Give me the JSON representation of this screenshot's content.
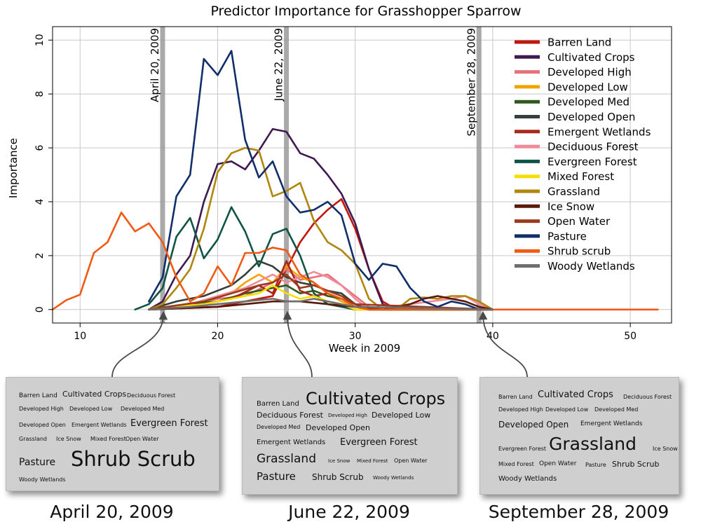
{
  "chart_data": {
    "type": "line",
    "title": "Predictor Importance for Grasshopper Sparrow",
    "xlabel": "Week in 2009",
    "ylabel": "Importance",
    "xlim": [
      8,
      53
    ],
    "ylim": [
      -0.5,
      10.5
    ],
    "xticks": [
      10,
      20,
      30,
      40,
      50
    ],
    "yticks": [
      0,
      2,
      4,
      6,
      8,
      10
    ],
    "grid": true,
    "legend_position": "top-right",
    "markers": [
      {
        "x": 16,
        "label": "April 20, 2009"
      },
      {
        "x": 25,
        "label": "June 22, 2009"
      },
      {
        "x": 39,
        "label": "September 28, 2009"
      }
    ],
    "series": [
      {
        "name": "Barren Land",
        "color": "#c0160c",
        "x": [
          15,
          20,
          24,
          25,
          26,
          27,
          28,
          29,
          30,
          31,
          32,
          33,
          35,
          40
        ],
        "values": [
          0,
          0.1,
          0.5,
          1.5,
          2.5,
          3.2,
          3.7,
          4.1,
          3.0,
          1.5,
          0.3,
          0,
          0,
          0
        ]
      },
      {
        "name": "Cultivated Crops",
        "color": "#3f1a52",
        "x": [
          15,
          16,
          17,
          18,
          19,
          20,
          21,
          22,
          23,
          24,
          25,
          26,
          27,
          28,
          29,
          30,
          31,
          32,
          33,
          40
        ],
        "values": [
          0,
          0.3,
          1.3,
          2.0,
          4.0,
          5.4,
          5.5,
          5.2,
          5.9,
          6.7,
          6.6,
          5.8,
          5.6,
          5.0,
          4.3,
          3.2,
          1.5,
          0.2,
          0,
          0
        ]
      },
      {
        "name": "Developed High",
        "color": "#e8707a",
        "x": [
          15,
          18,
          20,
          22,
          24,
          25,
          26,
          27,
          28,
          29,
          30,
          31,
          32,
          40
        ],
        "values": [
          0,
          0.2,
          0.4,
          0.5,
          1.0,
          1.5,
          1.1,
          1.2,
          1.3,
          0.9,
          0.5,
          0.1,
          0,
          0
        ]
      },
      {
        "name": "Developed Low",
        "color": "#f5a300",
        "x": [
          15,
          19,
          21,
          22,
          23,
          24,
          25,
          26,
          27,
          28,
          29,
          30,
          31,
          40
        ],
        "values": [
          0,
          0.3,
          0.6,
          1.0,
          1.3,
          1.0,
          1.6,
          1.2,
          1.0,
          0.6,
          0.3,
          0.1,
          0,
          0
        ]
      },
      {
        "name": "Developed Med",
        "color": "#2f5a1c",
        "x": [
          15,
          18,
          20,
          22,
          24,
          25,
          26,
          27,
          28,
          29,
          30,
          31,
          40
        ],
        "values": [
          0,
          0.2,
          0.3,
          0.6,
          0.8,
          0.9,
          0.6,
          0.7,
          0.5,
          0.4,
          0.2,
          0,
          0
        ]
      },
      {
        "name": "Developed Open",
        "color": "#34403b",
        "x": [
          15,
          17,
          19,
          21,
          22,
          23,
          24,
          25,
          26,
          27,
          28,
          29,
          30,
          31,
          40
        ],
        "values": [
          0,
          0.3,
          0.5,
          0.9,
          1.3,
          1.8,
          1.6,
          1.2,
          1.0,
          0.9,
          0.7,
          0.6,
          0.2,
          0,
          0
        ]
      },
      {
        "name": "Emergent Wetlands",
        "color": "#a8281a",
        "x": [
          15,
          19,
          21,
          23,
          24,
          25,
          26,
          27,
          28,
          29,
          30,
          31,
          40
        ],
        "values": [
          0,
          0.2,
          0.4,
          0.9,
          0.6,
          1.8,
          0.7,
          0.5,
          0.6,
          0.4,
          0.2,
          0,
          0
        ]
      },
      {
        "name": "Deciduous Forest",
        "color": "#f08a98",
        "x": [
          15,
          18,
          20,
          22,
          24,
          25,
          26,
          27,
          28,
          29,
          30,
          31,
          37,
          38,
          39,
          40
        ],
        "values": [
          0,
          0.2,
          0.5,
          0.8,
          1.3,
          1.0,
          1.2,
          1.4,
          1.2,
          0.9,
          0.4,
          0,
          0.4,
          0.5,
          0.2,
          0
        ]
      },
      {
        "name": "Evergreen Forest",
        "color": "#0f5546",
        "x": [
          14,
          15,
          16,
          17,
          18,
          19,
          20,
          21,
          22,
          23,
          24,
          25,
          26,
          27,
          28,
          29,
          30,
          31,
          40
        ],
        "values": [
          0,
          0.2,
          0.8,
          2.7,
          3.4,
          1.9,
          2.6,
          3.8,
          2.9,
          1.6,
          2.8,
          3.0,
          2.0,
          0.6,
          0.2,
          0.1,
          0,
          0,
          0
        ]
      },
      {
        "name": "Mixed Forest",
        "color": "#f6df00",
        "x": [
          15,
          19,
          21,
          23,
          24,
          25,
          26,
          27,
          28,
          29,
          30,
          40
        ],
        "values": [
          0,
          0.2,
          0.4,
          0.6,
          0.9,
          0.6,
          0.4,
          0.5,
          0.3,
          0.2,
          0,
          0
        ]
      },
      {
        "name": "Grassland",
        "color": "#b0860c",
        "x": [
          15,
          16,
          17,
          18,
          19,
          20,
          21,
          22,
          23,
          24,
          25,
          26,
          27,
          28,
          29,
          30,
          31,
          32,
          33,
          34,
          35,
          36,
          37,
          38,
          39,
          40
        ],
        "values": [
          0,
          0.2,
          0.8,
          1.5,
          3.0,
          5.1,
          5.8,
          6.0,
          5.9,
          4.2,
          4.4,
          4.7,
          3.3,
          2.5,
          2.2,
          1.7,
          0.4,
          0,
          0,
          0.4,
          0.45,
          0.4,
          0.5,
          0.5,
          0.3,
          0
        ]
      },
      {
        "name": "Ice Snow",
        "color": "#5a1808",
        "x": [
          15,
          20,
          22,
          24,
          26,
          28,
          30,
          32,
          34,
          35,
          36,
          37,
          38,
          39,
          40
        ],
        "values": [
          0,
          0.1,
          0.2,
          0.3,
          0.3,
          0.2,
          0.1,
          0,
          0.2,
          0.4,
          0.5,
          0.4,
          0.3,
          0.1,
          0
        ]
      },
      {
        "name": "Open Water",
        "color": "#9c3a20",
        "x": [
          15,
          19,
          21,
          23,
          24,
          25,
          26,
          27,
          28,
          29,
          30,
          40
        ],
        "values": [
          0,
          0.3,
          0.6,
          0.9,
          1.0,
          1.3,
          0.8,
          0.9,
          0.7,
          0.5,
          0.2,
          0
        ]
      },
      {
        "name": "Pasture",
        "color": "#0f2e6a",
        "x": [
          15,
          16,
          17,
          18,
          19,
          20,
          21,
          22,
          23,
          24,
          25,
          26,
          27,
          28,
          29,
          30,
          31,
          32,
          33,
          34,
          35,
          36,
          37,
          38,
          39,
          40
        ],
        "values": [
          0.3,
          1.2,
          4.2,
          5.0,
          9.3,
          8.7,
          9.6,
          6.3,
          4.9,
          5.5,
          4.2,
          3.6,
          3.7,
          4.0,
          3.5,
          1.7,
          1.1,
          1.7,
          1.6,
          0.8,
          0.3,
          0.1,
          0.3,
          0.2,
          0,
          0
        ]
      },
      {
        "name": "Shrub scrub",
        "color": "#f05a14",
        "x": [
          8,
          9,
          10,
          11,
          12,
          13,
          14,
          15,
          16,
          17,
          18,
          19,
          20,
          21,
          22,
          23,
          24,
          25,
          26,
          27,
          28,
          29,
          30,
          31,
          40,
          52
        ],
        "values": [
          0,
          0.35,
          0.55,
          2.1,
          2.5,
          3.6,
          2.9,
          3.2,
          2.5,
          1.2,
          0.3,
          0.6,
          1.6,
          0.9,
          2.1,
          2.1,
          2.3,
          2.2,
          1.3,
          1.0,
          0.6,
          0.4,
          0.1,
          0,
          0,
          0
        ]
      },
      {
        "name": "Woody Wetlands",
        "color": "#6e6e6e",
        "x": [
          15,
          18,
          20,
          22,
          24,
          25,
          26,
          27,
          28,
          29,
          30,
          40
        ],
        "values": [
          0,
          0.1,
          0.2,
          0.3,
          0.4,
          0.3,
          0.3,
          0.4,
          0.3,
          0.2,
          0.1,
          0
        ]
      }
    ]
  },
  "clouds": [
    {
      "caption": "April 20, 2009",
      "words": [
        {
          "text": "Barren Land",
          "size": 9
        },
        {
          "text": "Cultivated Crops",
          "size": 11
        },
        {
          "text": "Deciduous Forest",
          "size": 8
        },
        {
          "text": "Developed High",
          "size": 8
        },
        {
          "text": "Developed Low",
          "size": 8
        },
        {
          "text": "Developed Med",
          "size": 8
        },
        {
          "text": "Developed Open",
          "size": 8
        },
        {
          "text": "Emergent Wetlands",
          "size": 8
        },
        {
          "text": "Evergreen Forest",
          "size": 13
        },
        {
          "text": "Grassland",
          "size": 8
        },
        {
          "text": "Ice Snow",
          "size": 8
        },
        {
          "text": "Mixed Forest",
          "size": 8
        },
        {
          "text": "Open Water",
          "size": 8
        },
        {
          "text": "Pasture",
          "size": 14
        },
        {
          "text": "Shrub Scrub",
          "size": 29
        },
        {
          "text": "Woody Wetlands",
          "size": 8
        }
      ]
    },
    {
      "caption": "June 22, 2009",
      "words": [
        {
          "text": "Barren Land",
          "size": 10
        },
        {
          "text": "Cultivated Crops",
          "size": 24
        },
        {
          "text": "Deciduous Forest",
          "size": 11
        },
        {
          "text": "Developed High",
          "size": 7
        },
        {
          "text": "Developed Low",
          "size": 11
        },
        {
          "text": "Developed Med",
          "size": 8
        },
        {
          "text": "Developed Open",
          "size": 11
        },
        {
          "text": "Emergent Wetlands",
          "size": 10
        },
        {
          "text": "Evergreen Forest",
          "size": 13
        },
        {
          "text": "Grassland",
          "size": 17
        },
        {
          "text": "Ice Snow",
          "size": 7
        },
        {
          "text": "Mixed Forest",
          "size": 7
        },
        {
          "text": "Open Water",
          "size": 8
        },
        {
          "text": "Pasture",
          "size": 15
        },
        {
          "text": "Shrub Scrub",
          "size": 12
        },
        {
          "text": "Woody Wetlands",
          "size": 7
        }
      ]
    },
    {
      "caption": "September 28, 2009",
      "words": [
        {
          "text": "Barren Land",
          "size": 8
        },
        {
          "text": "Cultivated Crops",
          "size": 13
        },
        {
          "text": "Deciduous Forest",
          "size": 8
        },
        {
          "text": "Developed High",
          "size": 8
        },
        {
          "text": "Developed Low",
          "size": 8
        },
        {
          "text": "Developed Med",
          "size": 8
        },
        {
          "text": "Developed Open",
          "size": 12
        },
        {
          "text": "Emergent Wetlands",
          "size": 9
        },
        {
          "text": "Evergreen Forest",
          "size": 8
        },
        {
          "text": "Grassland",
          "size": 25
        },
        {
          "text": "Ice Snow",
          "size": 8
        },
        {
          "text": "Mixed Forest",
          "size": 8
        },
        {
          "text": "Open Water",
          "size": 9
        },
        {
          "text": "Pasture",
          "size": 8
        },
        {
          "text": "Shrub Scrub",
          "size": 11
        },
        {
          "text": "Woody Wetlands",
          "size": 10
        }
      ]
    }
  ]
}
